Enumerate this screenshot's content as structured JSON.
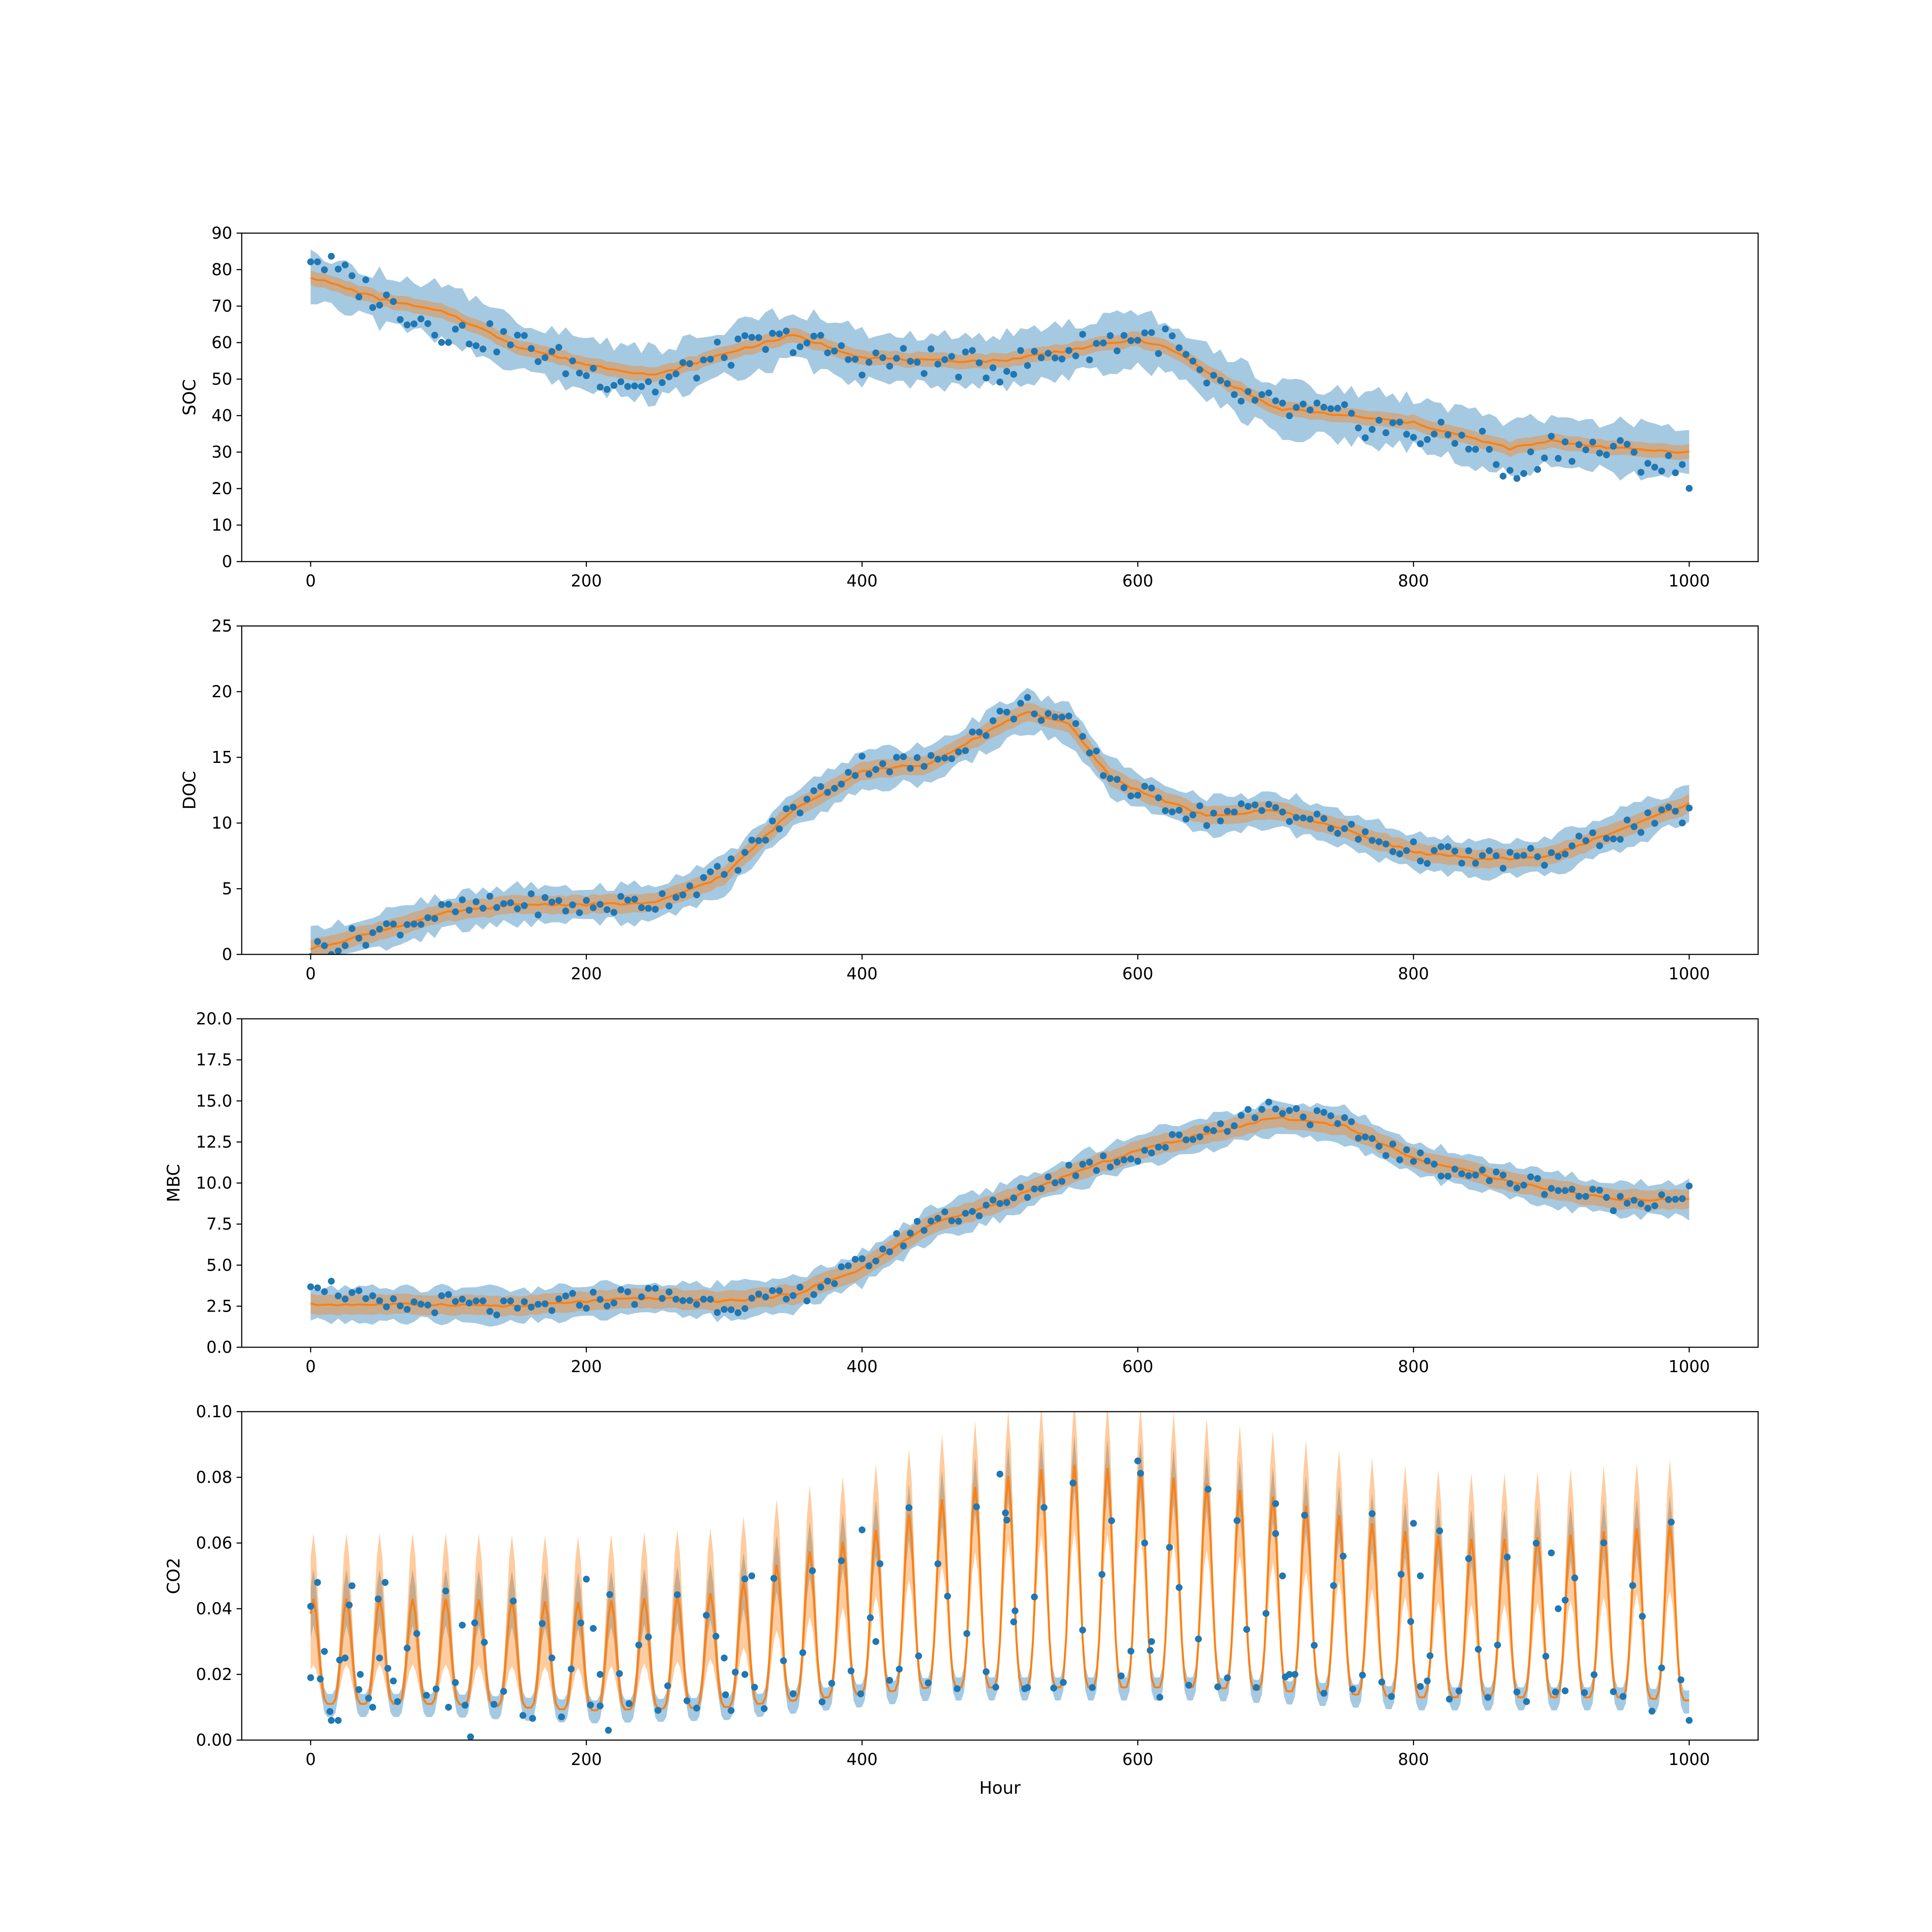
{
  "colors": {
    "observed": "#1f77b4",
    "observed_band": "#1f77b4",
    "model": "#ff7f0e",
    "model_band": "#ff7f0e",
    "axes": "#000000",
    "background": "#ffffff"
  },
  "chart_data": [
    {
      "type": "line",
      "title": "",
      "xlabel": "",
      "ylabel": "SOC",
      "xlim": [
        -50,
        1050
      ],
      "ylim": [
        0,
        90
      ],
      "xticks": [
        0,
        200,
        400,
        600,
        800,
        1000
      ],
      "yticks": [
        0,
        10,
        20,
        30,
        40,
        50,
        60,
        70,
        80,
        90
      ],
      "x": [
        0,
        50,
        100,
        150,
        200,
        250,
        300,
        350,
        400,
        450,
        500,
        550,
        600,
        625,
        650,
        700,
        750,
        800,
        850,
        870,
        900,
        950,
        1000
      ],
      "series": [
        {
          "kind": "model",
          "values": [
            78,
            72,
            68,
            59,
            54,
            51,
            57,
            62,
            56,
            55,
            55,
            58,
            61,
            58,
            52,
            42,
            40,
            38,
            33,
            31,
            33,
            31,
            30
          ],
          "band_halfwidth": 2
        },
        {
          "kind": "observed_band",
          "values": [
            78,
            72,
            68,
            59,
            54,
            51,
            57,
            62,
            56,
            55,
            55,
            58,
            61,
            58,
            52,
            42,
            40,
            38,
            33,
            31,
            33,
            31,
            30
          ],
          "band_halfwidth": 9
        },
        {
          "kind": "observed",
          "values": [
            84,
            72,
            63,
            60,
            52,
            48,
            57,
            61,
            55,
            55,
            53,
            58,
            62,
            60,
            48,
            42,
            39,
            35,
            33,
            22,
            32,
            30,
            24
          ]
        }
      ]
    },
    {
      "type": "line",
      "title": "",
      "xlabel": "",
      "ylabel": "DOC",
      "xlim": [
        -50,
        1050
      ],
      "ylim": [
        0,
        25
      ],
      "xticks": [
        0,
        200,
        400,
        600,
        800,
        1000
      ],
      "yticks": [
        0,
        5,
        10,
        15,
        20,
        25
      ],
      "x": [
        0,
        50,
        100,
        150,
        200,
        250,
        300,
        350,
        400,
        450,
        500,
        520,
        550,
        580,
        600,
        650,
        700,
        750,
        800,
        850,
        900,
        950,
        1000
      ],
      "series": [
        {
          "kind": "model",
          "values": [
            0.4,
            1.8,
            3.2,
            3.8,
            3.8,
            3.9,
            6,
            11,
            14,
            14.5,
            17.5,
            18.5,
            17.5,
            13.5,
            12.5,
            10.5,
            11,
            9.5,
            7.8,
            7.2,
            7.5,
            9.5,
            11.5
          ],
          "band_halfwidth": 0.7
        },
        {
          "kind": "observed_band",
          "values": [
            0.4,
            1.8,
            3.2,
            3.8,
            3.8,
            3.9,
            6,
            11,
            14,
            14.5,
            17.5,
            18.5,
            17.5,
            13.5,
            12.5,
            10.5,
            11,
            9.5,
            7.8,
            7.2,
            7.5,
            9.5,
            11.5
          ],
          "band_halfwidth": 1.8
        },
        {
          "kind": "observed",
          "values": [
            0.3,
            1.8,
            3.3,
            3.9,
            3.6,
            4,
            6.2,
            11,
            14.5,
            14.5,
            18,
            19,
            17.5,
            13.5,
            12.3,
            10.5,
            11.2,
            9.4,
            7.8,
            7.2,
            7.4,
            9.5,
            10.8
          ]
        }
      ]
    },
    {
      "type": "line",
      "title": "",
      "xlabel": "",
      "ylabel": "MBC",
      "xlim": [
        -50,
        1050
      ],
      "ylim": [
        0,
        20
      ],
      "xticks": [
        0,
        200,
        400,
        600,
        800,
        1000
      ],
      "yticks": [
        0.0,
        2.5,
        5.0,
        7.5,
        10.0,
        12.5,
        15.0,
        17.5,
        20.0
      ],
      "ytick_labels": [
        "0.0",
        "2.5",
        "5.0",
        "7.5",
        "10.0",
        "12.5",
        "15.0",
        "17.5",
        "20.0"
      ],
      "x": [
        0,
        50,
        100,
        150,
        200,
        250,
        300,
        350,
        400,
        450,
        500,
        550,
        600,
        650,
        700,
        750,
        800,
        850,
        900,
        950,
        1000
      ],
      "series": [
        {
          "kind": "model",
          "values": [
            2.6,
            2.6,
            2.6,
            2.5,
            2.8,
            3.0,
            2.8,
            3.2,
            4.8,
            7.5,
            8.8,
            10.5,
            12,
            13,
            14,
            13.5,
            11.5,
            10.5,
            9.6,
            9,
            9
          ],
          "band_halfwidth": 0.6
        },
        {
          "kind": "observed_band",
          "values": [
            2.6,
            2.6,
            2.6,
            2.5,
            2.8,
            3.0,
            2.8,
            3.2,
            4.8,
            7.5,
            8.8,
            10.5,
            12,
            13,
            14,
            13.5,
            11.5,
            10.5,
            9.6,
            9,
            9
          ],
          "band_halfwidth": 1.3
        },
        {
          "kind": "observed",
          "values": [
            4.2,
            2.4,
            2.7,
            2.2,
            2.9,
            3.2,
            2.6,
            3.0,
            5.0,
            7.8,
            8.6,
            10.8,
            11.8,
            13.2,
            14.8,
            13.4,
            11.4,
            10.4,
            9.8,
            8.8,
            9.4
          ]
        }
      ]
    },
    {
      "type": "line",
      "title": "",
      "xlabel": "Hour",
      "ylabel": "CO2",
      "xlim": [
        -50,
        1050
      ],
      "ylim": [
        0,
        0.1
      ],
      "xticks": [
        0,
        200,
        400,
        600,
        800,
        1000
      ],
      "yticks": [
        0.0,
        0.02,
        0.04,
        0.06,
        0.08,
        0.1
      ],
      "ytick_labels": [
        "0.00",
        "0.02",
        "0.04",
        "0.06",
        "0.08",
        "0.10"
      ],
      "period_hours": 24,
      "x": [
        0,
        100,
        200,
        300,
        350,
        400,
        450,
        500,
        550,
        600,
        650,
        700,
        750,
        800,
        850,
        900,
        950,
        1000
      ],
      "series": [
        {
          "kind": "model_peak",
          "values": [
            0.043,
            0.043,
            0.042,
            0.045,
            0.056,
            0.062,
            0.072,
            0.08,
            0.084,
            0.082,
            0.078,
            0.074,
            0.068,
            0.063,
            0.061,
            0.062,
            0.064,
            0.066
          ]
        },
        {
          "kind": "model_trough",
          "values": [
            0.011,
            0.011,
            0.009,
            0.01,
            0.012,
            0.014,
            0.016,
            0.016,
            0.016,
            0.016,
            0.016,
            0.015,
            0.014,
            0.013,
            0.013,
            0.013,
            0.013,
            0.012
          ]
        }
      ],
      "observed": {
        "x": [
          0,
          5,
          10,
          15,
          20,
          25,
          30,
          36,
          45,
          50,
          54,
          60,
          100,
          110,
          116,
          200,
          205,
          210,
          216,
          300,
          305,
          315,
          320,
          400,
          410,
          500,
          505,
          510,
          520,
          600,
          605,
          610,
          700,
          705,
          710,
          800,
          805,
          810,
          900,
          905,
          910,
          1000
        ],
        "y": [
          0.019,
          0.048,
          0.027,
          0.006,
          0.006,
          0.025,
          0.047,
          0.02,
          0.01,
          0.025,
          0.048,
          0.018,
          0.01,
          0.035,
          0.001,
          0.049,
          0.034,
          0.02,
          0.003,
          0.025,
          0.009,
          0.02,
          0.05,
          0.064,
          0.03,
          0.081,
          0.067,
          0.036,
          0.016,
          0.085,
          0.06,
          0.03,
          0.072,
          0.05,
          0.02,
          0.066,
          0.05,
          0.018,
          0.057,
          0.04,
          0.015,
          0.006
        ]
      }
    }
  ]
}
